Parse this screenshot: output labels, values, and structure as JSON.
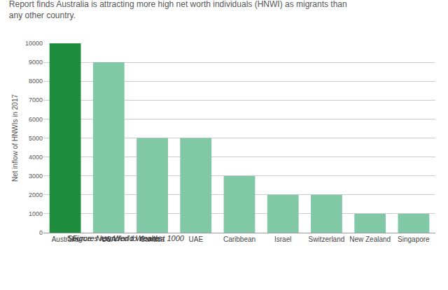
{
  "chart_data": {
    "type": "bar",
    "title": "Report finds Australia is attracting more high net worth individuals (HNWI) as migrants than any other country.",
    "y_label": "Net inflow of HNWIs in 2017",
    "categories": [
      "Australia",
      "USA",
      "Canada",
      "UAE",
      "Caribbean",
      "Israel",
      "Switzerland",
      "New Zealand",
      "Singapore"
    ],
    "values": [
      10000,
      9000,
      5000,
      5000,
      3000,
      2000,
      2000,
      1000,
      1000
    ],
    "colors": [
      "#1e8e3e",
      "#81c9a6",
      "#81c9a6",
      "#81c9a6",
      "#81c9a6",
      "#81c9a6",
      "#81c9a6",
      "#81c9a6",
      "#81c9a6"
    ],
    "ylim": [
      0,
      10000
    ],
    "yticks": [
      0,
      1000,
      2000,
      3000,
      4000,
      5000,
      6000,
      7000,
      8000,
      9000,
      10000
    ],
    "grid": true,
    "annotations": [
      "* Figures rounded to nearest 1000",
      "Source: New World Wealth"
    ]
  }
}
